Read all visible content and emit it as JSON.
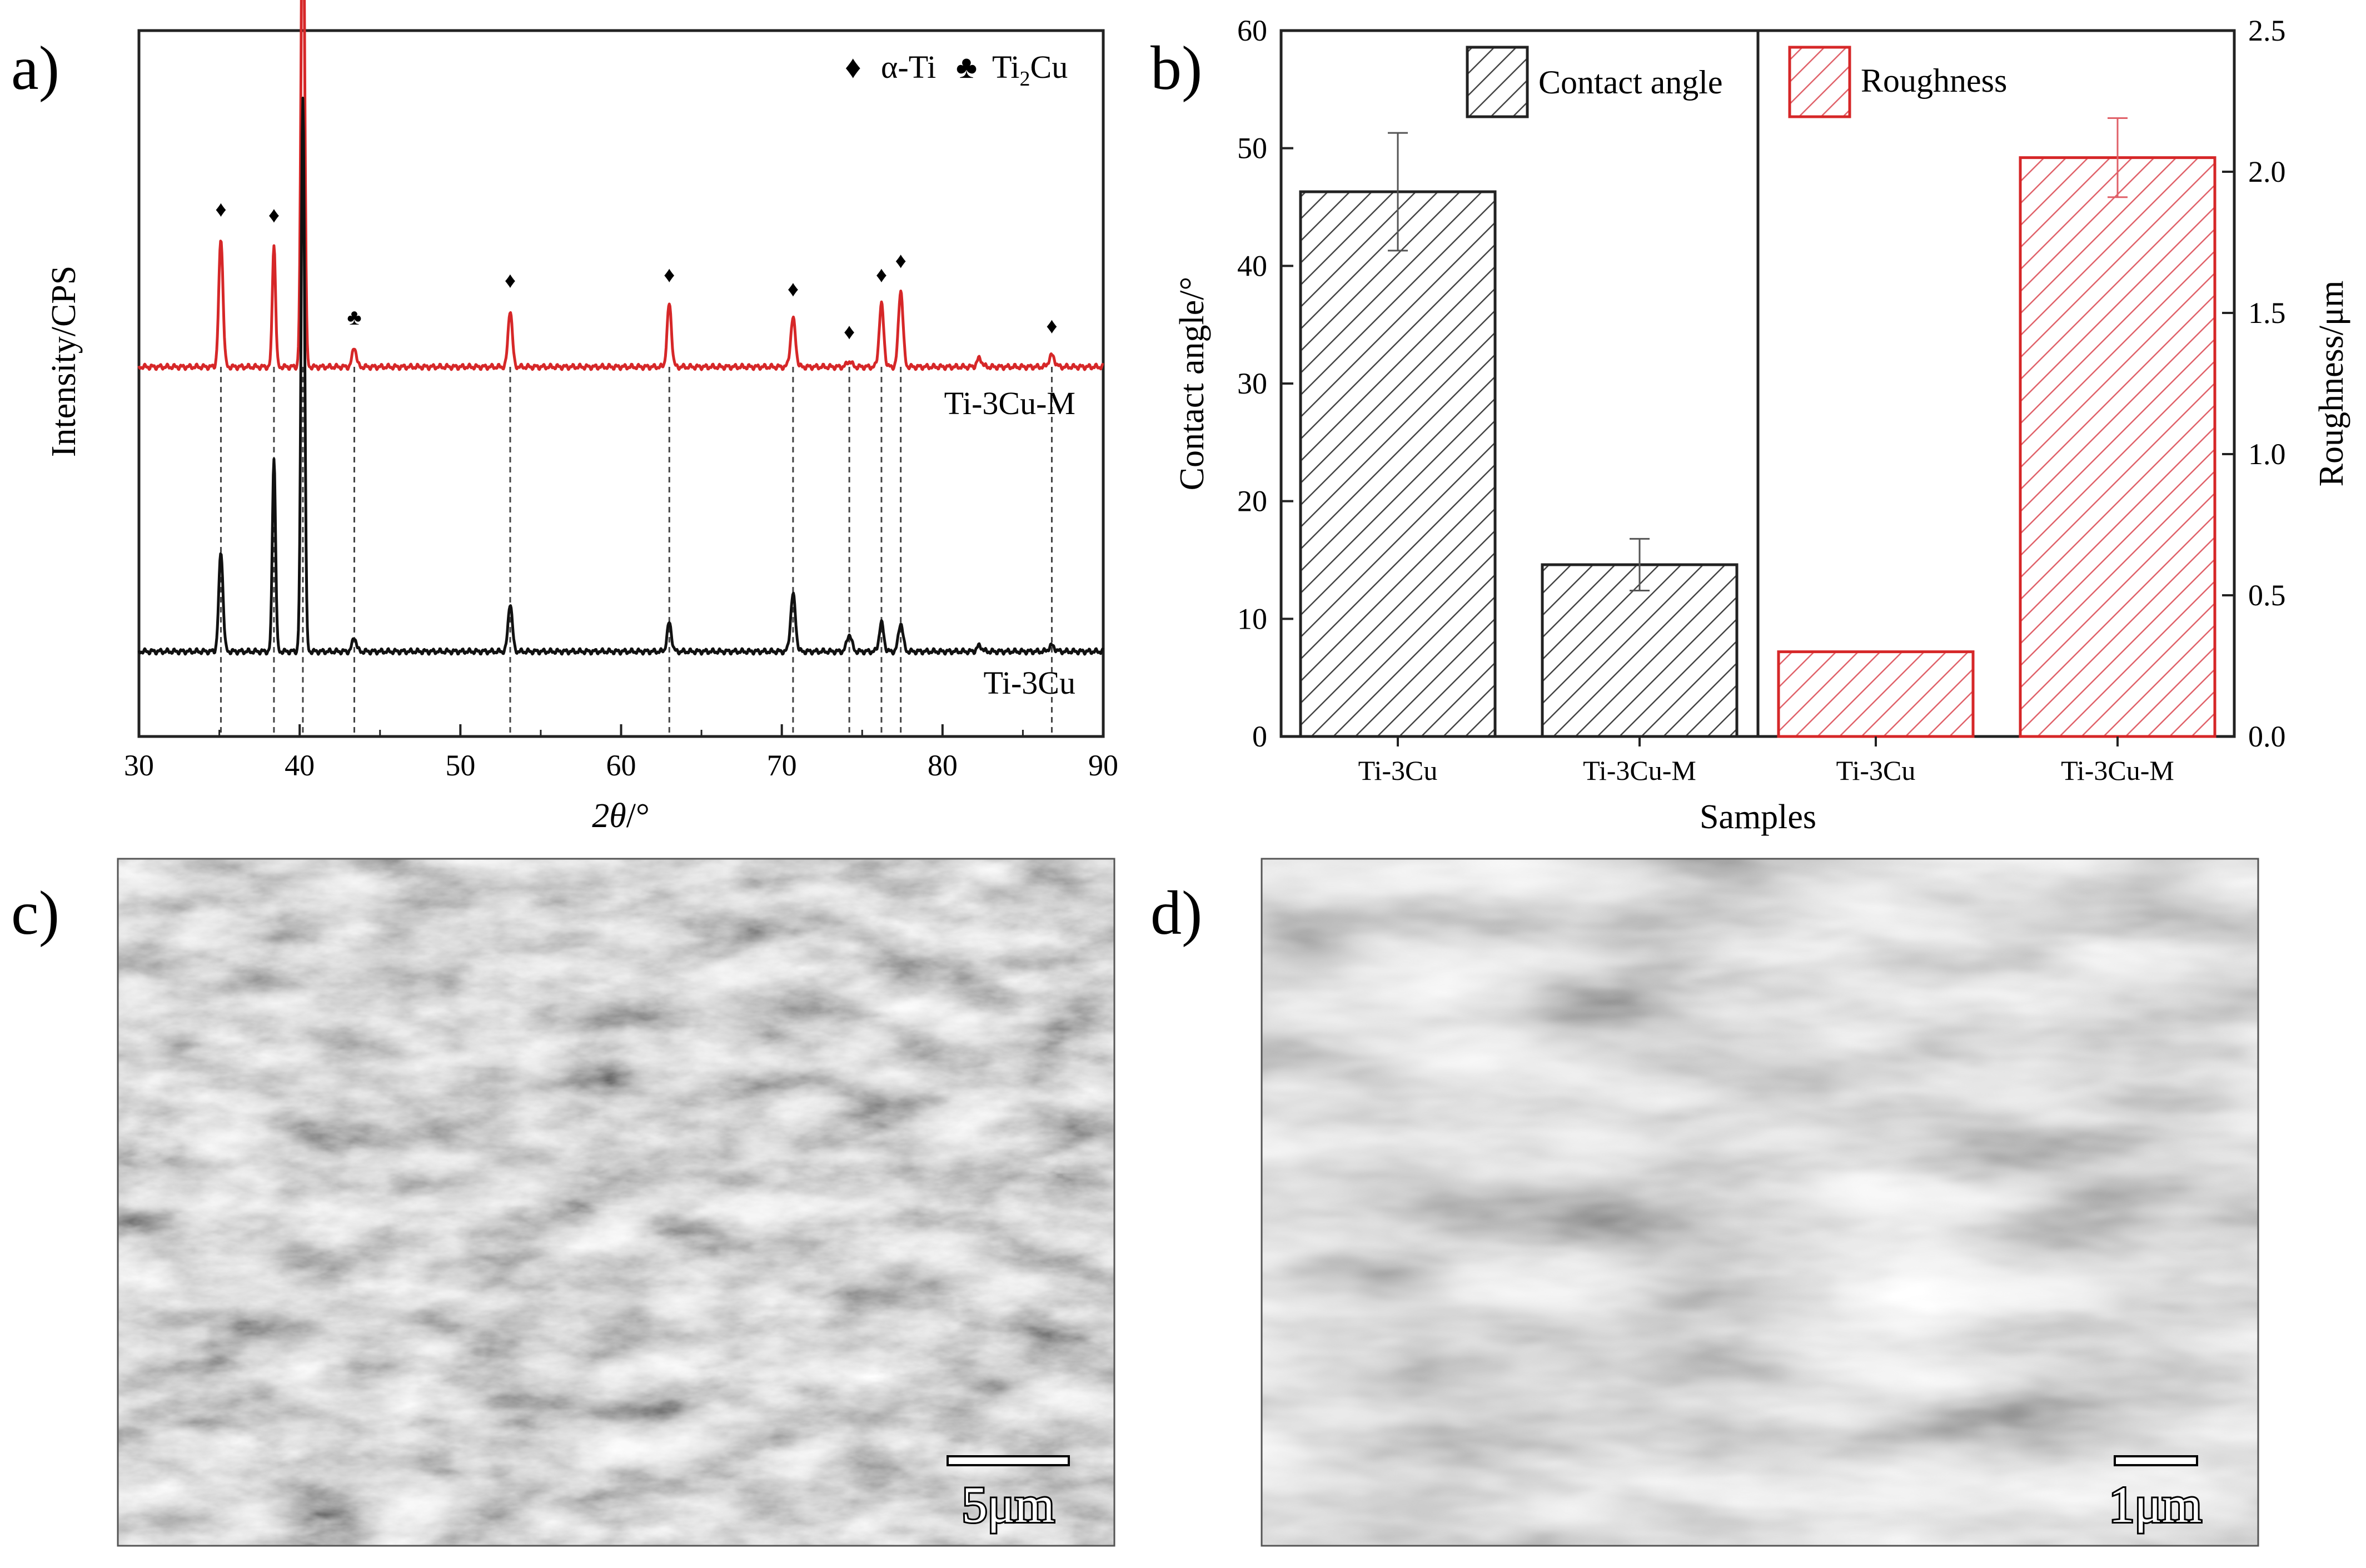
{
  "panels": {
    "a": {
      "label": "a)",
      "chart_data": {
        "type": "line",
        "xlabel_symbol": "2θ",
        "xlabel_unit": "/°",
        "ylabel": "Intensity/CPS",
        "xlim": [
          30,
          90
        ],
        "x_ticks": [
          "30",
          "40",
          "50",
          "60",
          "70",
          "80",
          "90"
        ],
        "legend": [
          {
            "marker": "♦",
            "text": "α-Ti"
          },
          {
            "marker": "♣",
            "text_main": "Ti",
            "text_sub": "2",
            "text_end": "Cu"
          }
        ],
        "series": [
          {
            "name": "Ti-3Cu-M",
            "color": "#d62728",
            "baseline": 1.0,
            "peaks": [
              [
                35.1,
                0.45,
                0.26
              ],
              [
                38.4,
                0.43,
                0.2
              ],
              [
                40.2,
                1.85,
                0.22
              ],
              [
                43.4,
                0.07,
                0.25
              ],
              [
                53.1,
                0.2,
                0.26
              ],
              [
                63.0,
                0.22,
                0.27
              ],
              [
                70.7,
                0.17,
                0.3
              ],
              [
                74.2,
                0.02,
                0.3
              ],
              [
                76.2,
                0.22,
                0.28
              ],
              [
                77.4,
                0.27,
                0.28
              ],
              [
                82.3,
                0.03,
                0.3
              ],
              [
                86.8,
                0.04,
                0.35
              ]
            ]
          },
          {
            "name": "Ti-3Cu",
            "color": "#111111",
            "baseline": 0.0,
            "peaks": [
              [
                35.1,
                0.35,
                0.26
              ],
              [
                38.4,
                0.68,
                0.2
              ],
              [
                40.2,
                1.95,
                0.22
              ],
              [
                43.4,
                0.05,
                0.25
              ],
              [
                53.1,
                0.17,
                0.26
              ],
              [
                63.0,
                0.1,
                0.27
              ],
              [
                70.7,
                0.2,
                0.3
              ],
              [
                74.2,
                0.06,
                0.3
              ],
              [
                76.2,
                0.1,
                0.28
              ],
              [
                77.4,
                0.1,
                0.28
              ],
              [
                82.3,
                0.02,
                0.3
              ],
              [
                86.8,
                0.02,
                0.35
              ]
            ]
          }
        ],
        "phase_markers": [
          {
            "x": 35.1,
            "symbol": "♦"
          },
          {
            "x": 38.4,
            "symbol": "♦"
          },
          {
            "x": 40.2,
            "symbol": "♦"
          },
          {
            "x": 43.4,
            "symbol": "♣"
          },
          {
            "x": 53.1,
            "symbol": "♦"
          },
          {
            "x": 63.0,
            "symbol": "♦"
          },
          {
            "x": 70.7,
            "symbol": "♦"
          },
          {
            "x": 74.2,
            "symbol": "♦"
          },
          {
            "x": 76.2,
            "symbol": "♦"
          },
          {
            "x": 77.4,
            "symbol": "♦"
          },
          {
            "x": 86.8,
            "symbol": "♦"
          }
        ],
        "series_labels": [
          "Ti-3Cu-M",
          "Ti-3Cu"
        ]
      }
    },
    "b": {
      "label": "b)",
      "chart_data": {
        "type": "bar",
        "xlabel": "Samples",
        "ylabel_left": "Contact angle/°",
        "ylabel_right": "Roughness/μm",
        "ylim_left": [
          0,
          60
        ],
        "ylim_right": [
          0,
          2.5
        ],
        "y_ticks_left": [
          "0",
          "10",
          "20",
          "30",
          "40",
          "50",
          "60"
        ],
        "y_ticks_right": [
          "0.0",
          "0.5",
          "1.0",
          "1.5",
          "2.0",
          "2.5"
        ],
        "series": [
          {
            "name": "Contact angle",
            "color": "#333333",
            "axis": "left",
            "categories": [
              "Ti-3Cu",
              "Ti-3Cu-M"
            ],
            "values": [
              46.3,
              14.6
            ],
            "errors": [
              5.0,
              2.2
            ]
          },
          {
            "name": "Roughness",
            "color": "#d62728",
            "axis": "right",
            "categories": [
              "Ti-3Cu",
              "Ti-3Cu-M"
            ],
            "values": [
              0.3,
              2.05
            ],
            "errors": [
              0.0,
              0.14
            ]
          }
        ]
      }
    },
    "c": {
      "label": "c)",
      "scale_bar": "5μm"
    },
    "d": {
      "label": "d)",
      "scale_bar": "1μm"
    }
  }
}
